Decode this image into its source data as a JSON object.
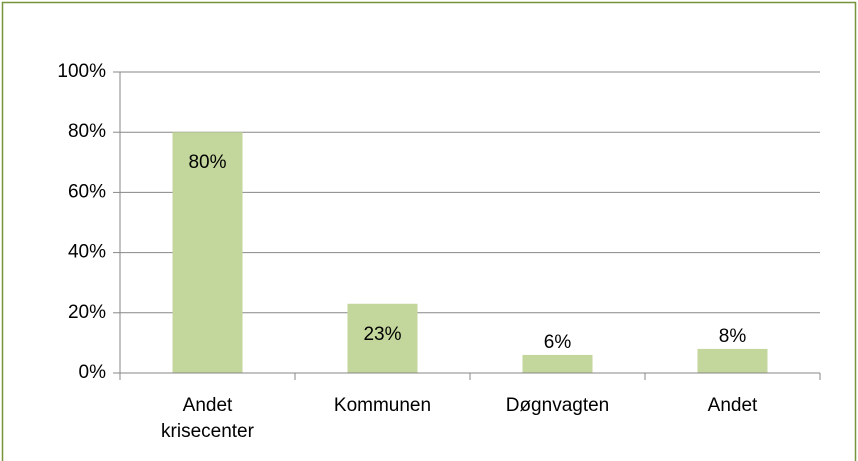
{
  "chart_data": {
    "type": "bar",
    "categories": [
      "Andet krisecenter",
      "Kommunen",
      "Døgnvagten",
      "Andet"
    ],
    "values": [
      80,
      23,
      6,
      8
    ],
    "value_labels": [
      "80%",
      "23%",
      "6%",
      "8%"
    ],
    "color": "#c3d69b",
    "ylim": [
      0,
      100
    ],
    "yticks": [
      {
        "value": 0,
        "label": "0%"
      },
      {
        "value": 20,
        "label": "20%"
      },
      {
        "value": 40,
        "label": "40%"
      },
      {
        "value": 60,
        "label": "60%"
      },
      {
        "value": 80,
        "label": "80%"
      },
      {
        "value": 100,
        "label": "100%"
      }
    ],
    "grid": true
  }
}
